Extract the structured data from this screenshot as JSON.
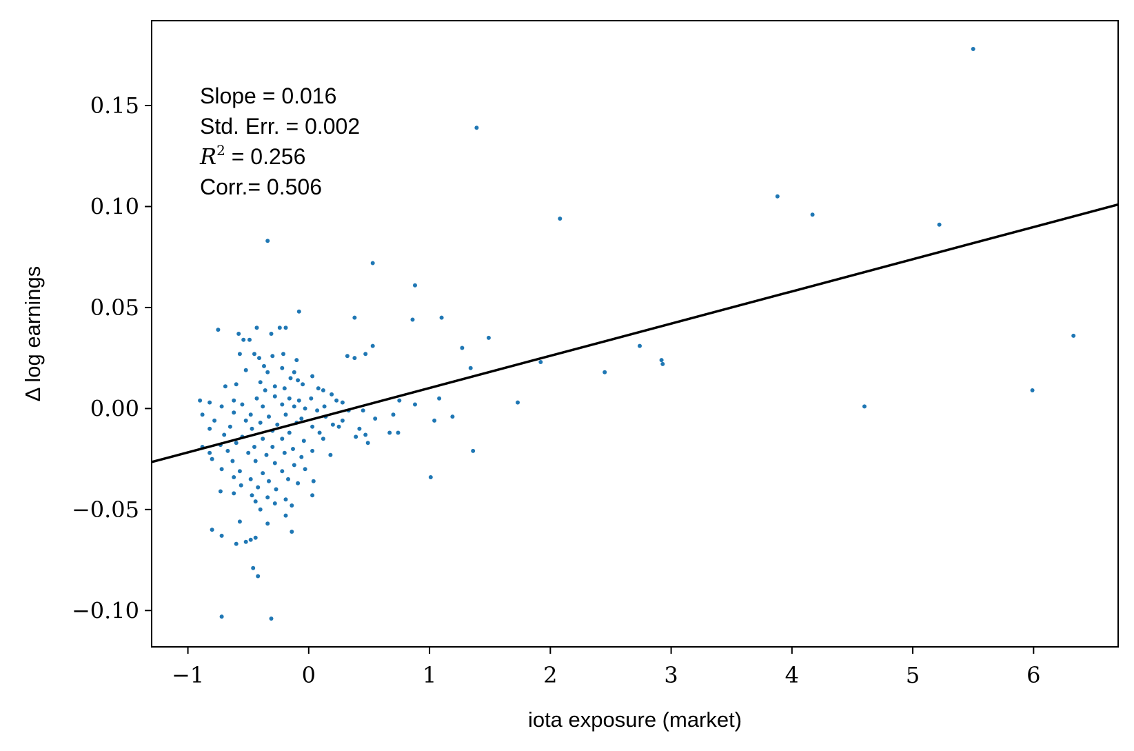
{
  "chart_data": {
    "type": "scatter",
    "xlabel": "iota exposure (market)",
    "ylabel": "Δ log earnings",
    "xlim": [
      -1.3,
      6.7
    ],
    "ylim": [
      -0.118,
      0.192
    ],
    "xticks": [
      -1,
      0,
      1,
      2,
      3,
      4,
      5,
      6
    ],
    "xtick_labels": [
      "−1",
      "0",
      "1",
      "2",
      "3",
      "4",
      "5",
      "6"
    ],
    "yticks": [
      -0.1,
      -0.05,
      0.0,
      0.05,
      0.1,
      0.15
    ],
    "ytick_labels": [
      "−0.10",
      "−0.05",
      "0.00",
      "0.05",
      "0.10",
      "0.15"
    ],
    "grid": false,
    "point_color": "#1f77b4",
    "line_color": "#000000",
    "fit_line": {
      "x": [
        -1.3,
        6.7
      ],
      "y": [
        -0.0265,
        0.101
      ]
    },
    "annotations": {
      "slope": "Slope = 0.016",
      "stderr": "Std. Err. = 0.002",
      "r2_symbol": "R",
      "r2_exp": "2",
      "r2_value": " = 0.256",
      "corr": "Corr.= 0.506"
    },
    "points": [
      [
        5.5,
        0.178
      ],
      [
        1.39,
        0.139
      ],
      [
        3.88,
        0.105
      ],
      [
        4.17,
        0.096
      ],
      [
        2.08,
        0.094
      ],
      [
        5.22,
        0.091
      ],
      [
        -0.34,
        0.083
      ],
      [
        0.53,
        0.072
      ],
      [
        0.88,
        0.061
      ],
      [
        -0.08,
        0.048
      ],
      [
        0.38,
        0.045
      ],
      [
        0.86,
        0.044
      ],
      [
        1.1,
        0.045
      ],
      [
        -0.43,
        0.04
      ],
      [
        -0.24,
        0.04
      ],
      [
        -0.19,
        0.04
      ],
      [
        -0.75,
        0.039
      ],
      [
        -0.58,
        0.037
      ],
      [
        -0.49,
        0.034
      ],
      [
        -0.54,
        0.034
      ],
      [
        -0.31,
        0.037
      ],
      [
        6.33,
        0.036
      ],
      [
        1.49,
        0.035
      ],
      [
        2.74,
        0.031
      ],
      [
        0.53,
        0.031
      ],
      [
        0.47,
        0.027
      ],
      [
        1.27,
        0.03
      ],
      [
        0.32,
        0.026
      ],
      [
        0.38,
        0.025
      ],
      [
        -0.45,
        0.027
      ],
      [
        -0.57,
        0.027
      ],
      [
        -0.21,
        0.027
      ],
      [
        -0.1,
        0.024
      ],
      [
        -0.41,
        0.025
      ],
      [
        -0.3,
        0.026
      ],
      [
        2.92,
        0.024
      ],
      [
        2.93,
        0.022
      ],
      [
        1.92,
        0.023
      ],
      [
        1.34,
        0.02
      ],
      [
        2.45,
        0.018
      ],
      [
        -0.37,
        0.021
      ],
      [
        -0.34,
        0.018
      ],
      [
        -0.22,
        0.02
      ],
      [
        -0.12,
        0.018
      ],
      [
        -0.52,
        0.019
      ],
      [
        0.03,
        0.016
      ],
      [
        -0.15,
        0.015
      ],
      [
        -0.09,
        0.014
      ],
      [
        -0.4,
        0.013
      ],
      [
        -0.6,
        0.012
      ],
      [
        -0.69,
        0.011
      ],
      [
        -0.05,
        0.012
      ],
      [
        0.08,
        0.01
      ],
      [
        -0.2,
        0.01
      ],
      [
        -0.28,
        0.011
      ],
      [
        -0.36,
        0.009
      ],
      [
        0.19,
        0.007
      ],
      [
        0.12,
        0.009
      ],
      [
        1.08,
        0.005
      ],
      [
        0.75,
        0.004
      ],
      [
        1.73,
        0.003
      ],
      [
        5.99,
        0.009
      ],
      [
        -0.9,
        0.004
      ],
      [
        -0.82,
        0.003
      ],
      [
        -0.62,
        0.004
      ],
      [
        -0.43,
        0.005
      ],
      [
        -0.28,
        0.006
      ],
      [
        -0.16,
        0.005
      ],
      [
        -0.08,
        0.004
      ],
      [
        0.02,
        0.005
      ],
      [
        0.23,
        0.004
      ],
      [
        0.28,
        0.003
      ],
      [
        0.88,
        0.002
      ],
      [
        4.6,
        0.001
      ],
      [
        -0.72,
        0.001
      ],
      [
        -0.55,
        0.002
      ],
      [
        -0.38,
        0.001
      ],
      [
        -0.22,
        0.002
      ],
      [
        -0.12,
        0.001
      ],
      [
        -0.03,
        0.0
      ],
      [
        0.13,
        0.001
      ],
      [
        0.33,
        -0.001
      ],
      [
        0.45,
        -0.001
      ],
      [
        0.7,
        -0.003
      ],
      [
        0.07,
        -0.001
      ],
      [
        -0.88,
        -0.003
      ],
      [
        -0.62,
        -0.002
      ],
      [
        -0.48,
        -0.003
      ],
      [
        -0.33,
        -0.004
      ],
      [
        -0.19,
        -0.003
      ],
      [
        -0.06,
        -0.005
      ],
      [
        0.14,
        -0.004
      ],
      [
        0.28,
        -0.006
      ],
      [
        0.55,
        -0.005
      ],
      [
        1.19,
        -0.004
      ],
      [
        1.04,
        -0.006
      ],
      [
        -0.78,
        -0.006
      ],
      [
        -0.52,
        -0.006
      ],
      [
        -0.4,
        -0.007
      ],
      [
        -0.26,
        -0.008
      ],
      [
        -0.1,
        -0.007
      ],
      [
        0.03,
        -0.009
      ],
      [
        0.2,
        -0.008
      ],
      [
        0.42,
        -0.01
      ],
      [
        -0.82,
        -0.01
      ],
      [
        -0.65,
        -0.009
      ],
      [
        -0.47,
        -0.01
      ],
      [
        -0.3,
        -0.011
      ],
      [
        -0.16,
        -0.012
      ],
      [
        0.09,
        -0.012
      ],
      [
        0.25,
        -0.009
      ],
      [
        0.67,
        -0.012
      ],
      [
        0.74,
        -0.012
      ],
      [
        0.39,
        -0.014
      ],
      [
        0.47,
        -0.013
      ],
      [
        -0.7,
        -0.013
      ],
      [
        -0.55,
        -0.014
      ],
      [
        -0.38,
        -0.015
      ],
      [
        -0.22,
        -0.015
      ],
      [
        -0.04,
        -0.016
      ],
      [
        0.12,
        -0.015
      ],
      [
        0.49,
        -0.017
      ],
      [
        -0.88,
        -0.019
      ],
      [
        -0.73,
        -0.018
      ],
      [
        -0.6,
        -0.017
      ],
      [
        -0.45,
        -0.019
      ],
      [
        -0.3,
        -0.019
      ],
      [
        -0.13,
        -0.02
      ],
      [
        0.03,
        -0.021
      ],
      [
        -0.82,
        -0.022
      ],
      [
        -0.67,
        -0.021
      ],
      [
        -0.5,
        -0.022
      ],
      [
        -0.35,
        -0.023
      ],
      [
        -0.2,
        -0.022
      ],
      [
        -0.06,
        -0.024
      ],
      [
        1.36,
        -0.021
      ],
      [
        0.18,
        -0.023
      ],
      [
        -0.8,
        -0.025
      ],
      [
        -0.63,
        -0.026
      ],
      [
        -0.44,
        -0.026
      ],
      [
        -0.28,
        -0.027
      ],
      [
        -0.12,
        -0.028
      ],
      [
        -0.72,
        -0.03
      ],
      [
        -0.57,
        -0.031
      ],
      [
        -0.38,
        -0.032
      ],
      [
        -0.22,
        -0.031
      ],
      [
        -0.03,
        -0.03
      ],
      [
        -0.62,
        -0.034
      ],
      [
        -0.48,
        -0.035
      ],
      [
        -0.33,
        -0.036
      ],
      [
        -0.17,
        -0.035
      ],
      [
        1.01,
        -0.034
      ],
      [
        -0.56,
        -0.038
      ],
      [
        -0.42,
        -0.039
      ],
      [
        -0.27,
        -0.04
      ],
      [
        -0.09,
        -0.037
      ],
      [
        0.04,
        -0.036
      ],
      [
        -0.73,
        -0.041
      ],
      [
        -0.62,
        -0.042
      ],
      [
        -0.47,
        -0.043
      ],
      [
        -0.34,
        -0.044
      ],
      [
        -0.19,
        -0.045
      ],
      [
        0.03,
        -0.043
      ],
      [
        -0.44,
        -0.046
      ],
      [
        -0.28,
        -0.047
      ],
      [
        -0.14,
        -0.048
      ],
      [
        -0.4,
        -0.05
      ],
      [
        -0.19,
        -0.053
      ],
      [
        -0.57,
        -0.056
      ],
      [
        -0.34,
        -0.057
      ],
      [
        -0.8,
        -0.06
      ],
      [
        -0.14,
        -0.061
      ],
      [
        -0.72,
        -0.063
      ],
      [
        -0.48,
        -0.065
      ],
      [
        -0.44,
        -0.064
      ],
      [
        -0.6,
        -0.067
      ],
      [
        -0.52,
        -0.066
      ],
      [
        -0.46,
        -0.079
      ],
      [
        -0.42,
        -0.083
      ],
      [
        -0.72,
        -0.103
      ],
      [
        -0.31,
        -0.104
      ]
    ]
  }
}
